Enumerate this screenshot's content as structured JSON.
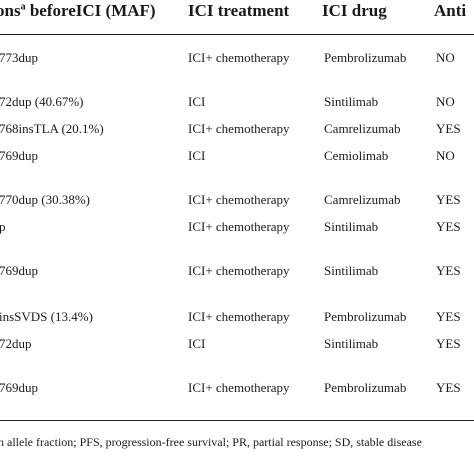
{
  "table": {
    "headers": {
      "mutation_prefix": "ons",
      "mutation_sup": "a",
      "mutation_suffix": " beforeICI (MAF)",
      "treatment": "ICI treatment",
      "drug": "ICI drug",
      "anti": "Anti"
    },
    "rows": [
      {
        "mutation": "773dup",
        "treatment": "ICI+ chemotherapy",
        "drug": "Pembrolizumab",
        "anti": "NO"
      },
      {
        "mutation": "72dup (40.67%)",
        "treatment": "ICI",
        "drug": "Sintilimab",
        "anti": "NO"
      },
      {
        "mutation": "768insTLA (20.1%)",
        "treatment": "ICI+ chemotherapy",
        "drug": "Camrelizumab",
        "anti": "YES"
      },
      {
        "mutation": "769dup",
        "treatment": "ICI",
        "drug": "Cemiolimab",
        "anti": "NO"
      },
      {
        "mutation": "770dup (30.38%)",
        "treatment": "ICI+ chemotherapy",
        "drug": "Camrelizumab",
        "anti": "YES"
      },
      {
        "mutation": "p",
        "treatment": "ICI+ chemotherapy",
        "drug": "Sintilimab",
        "anti": "YES"
      },
      {
        "mutation": "769dup",
        "treatment": "ICI+ chemotherapy",
        "drug": "Sintilimab",
        "anti": "YES"
      },
      {
        "mutation": "insSVDS (13.4%)",
        "treatment": "ICI+ chemotherapy",
        "drug": "Pembrolizumab",
        "anti": "YES"
      },
      {
        "mutation": "72dup",
        "treatment": "ICI",
        "drug": "Sintilimab",
        "anti": "YES"
      },
      {
        "mutation": "769dup",
        "treatment": "ICI+ chemotherapy",
        "drug": "Pembrolizumab",
        "anti": "YES"
      }
    ]
  },
  "footnote": "on allele fraction; PFS, progression-free survival; PR, partial response; SD, stable disease"
}
